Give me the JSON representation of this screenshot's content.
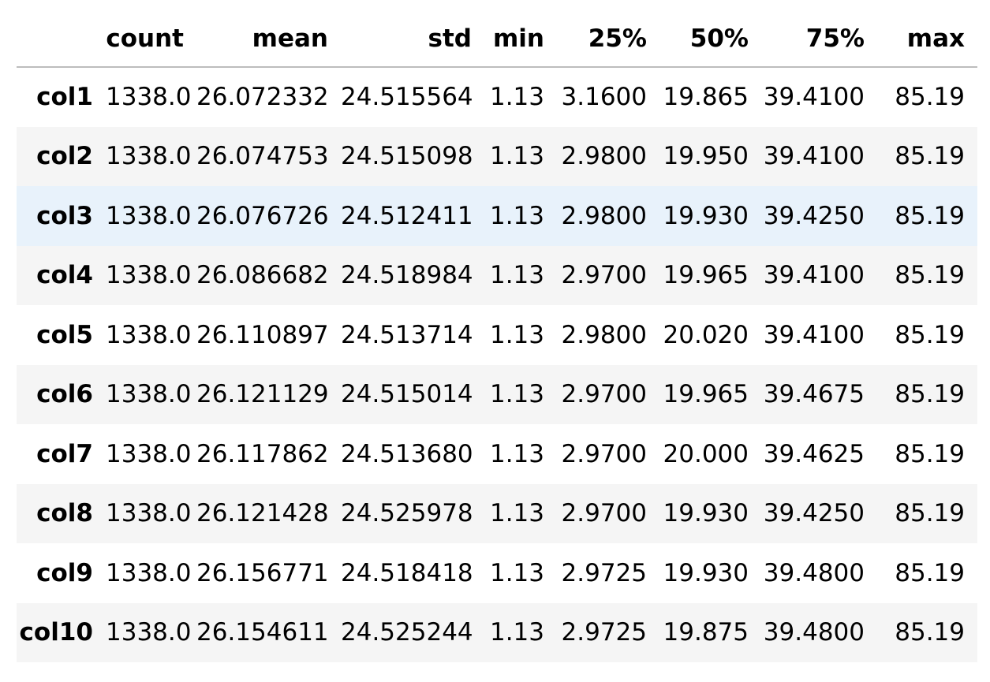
{
  "table": {
    "index_header": "",
    "columns": [
      "count",
      "mean",
      "std",
      "min",
      "25%",
      "50%",
      "75%",
      "max"
    ],
    "hovered_row": "col3",
    "rows": [
      {
        "index": "col1",
        "values": [
          "1338.0",
          "26.072332",
          "24.515564",
          "1.13",
          "3.1600",
          "19.865",
          "39.4100",
          "85.19"
        ]
      },
      {
        "index": "col2",
        "values": [
          "1338.0",
          "26.074753",
          "24.515098",
          "1.13",
          "2.9800",
          "19.950",
          "39.4100",
          "85.19"
        ]
      },
      {
        "index": "col3",
        "values": [
          "1338.0",
          "26.076726",
          "24.512411",
          "1.13",
          "2.9800",
          "19.930",
          "39.4250",
          "85.19"
        ]
      },
      {
        "index": "col4",
        "values": [
          "1338.0",
          "26.086682",
          "24.518984",
          "1.13",
          "2.9700",
          "19.965",
          "39.4100",
          "85.19"
        ]
      },
      {
        "index": "col5",
        "values": [
          "1338.0",
          "26.110897",
          "24.513714",
          "1.13",
          "2.9800",
          "20.020",
          "39.4100",
          "85.19"
        ]
      },
      {
        "index": "col6",
        "values": [
          "1338.0",
          "26.121129",
          "24.515014",
          "1.13",
          "2.9700",
          "19.965",
          "39.4675",
          "85.19"
        ]
      },
      {
        "index": "col7",
        "values": [
          "1338.0",
          "26.117862",
          "24.513680",
          "1.13",
          "2.9700",
          "20.000",
          "39.4625",
          "85.19"
        ]
      },
      {
        "index": "col8",
        "values": [
          "1338.0",
          "26.121428",
          "24.525978",
          "1.13",
          "2.9700",
          "19.930",
          "39.4250",
          "85.19"
        ]
      },
      {
        "index": "col9",
        "values": [
          "1338.0",
          "26.156771",
          "24.518418",
          "1.13",
          "2.9725",
          "19.930",
          "39.4800",
          "85.19"
        ]
      },
      {
        "index": "col10",
        "values": [
          "1338.0",
          "26.154611",
          "24.525244",
          "1.13",
          "2.9725",
          "19.875",
          "39.4800",
          "85.19"
        ]
      }
    ]
  },
  "colors": {
    "header_border": "#bdbdbd",
    "row_even": "#f5f5f5",
    "row_hover": "#e8f2fb"
  }
}
